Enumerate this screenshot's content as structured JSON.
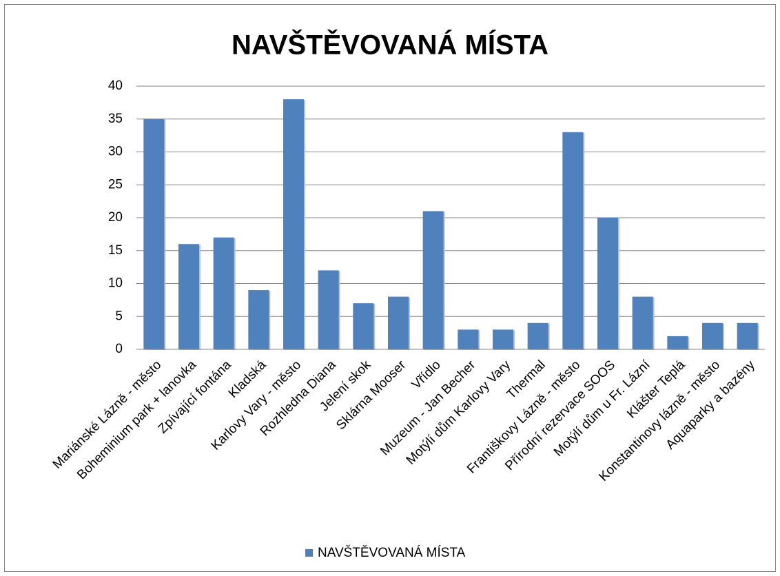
{
  "chart_data": {
    "type": "bar",
    "title": "NAVŠTĚVOVANÁ MÍSTA",
    "categories": [
      "Mariánské Lázně - město",
      "Boheminium park + lanovka",
      "Zpívající fontána",
      "Kladská",
      "Karlovy Vary - město",
      "Rozhledna Diana",
      "Jelení skok",
      "Sklárna Mooser",
      "Vřídlo",
      "Muzeum - Jan Becher",
      "Motýlí dům Karlovy Vary",
      "Thermal",
      "Františkovy Lázně - město",
      "Přírodní rezervace SOOS",
      "Motýlí dům u Fr. Lázní",
      "Klášter Teplá",
      "Konstantinovy lázně - město",
      "Aquaparky a bazény"
    ],
    "series": [
      {
        "name": "NAVŠTĚVOVANÁ MÍSTA",
        "color": "#4f81bd",
        "values": [
          35,
          16,
          17,
          9,
          38,
          12,
          7,
          8,
          21,
          3,
          3,
          4,
          33,
          20,
          8,
          2,
          4,
          4
        ]
      }
    ],
    "ylim": [
      0,
      40
    ],
    "yticks": [
      0,
      5,
      10,
      15,
      20,
      25,
      30,
      35,
      40
    ],
    "grid": true,
    "legend": "bottom"
  }
}
